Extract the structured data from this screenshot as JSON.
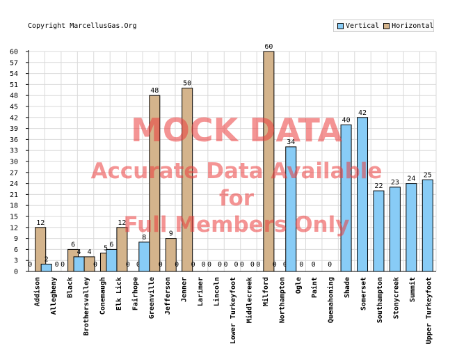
{
  "copyright": "Copyright MarcellusGas.Org",
  "watermark": {
    "line1": "MOCK DATA",
    "line2": "Accurate Data Available",
    "line3": "for",
    "line4": "Full Members Only"
  },
  "colors": {
    "vertical": "#88ccf6",
    "horizontal": "#d4b48c",
    "grid": "#d9d9d9",
    "watermark": "#eb3c3c"
  },
  "chart_data": {
    "type": "bar",
    "title": "",
    "xlabel": "",
    "ylabel": "",
    "ylim": [
      0,
      60
    ],
    "yticks": [
      0,
      3,
      6,
      9,
      12,
      15,
      18,
      21,
      24,
      27,
      30,
      33,
      36,
      39,
      42,
      45,
      48,
      51,
      54,
      57,
      60
    ],
    "grid": true,
    "legend_position": "top-right",
    "categories": [
      "Addison",
      "Allegheny",
      "Black",
      "Brothersvalley",
      "Conemaugh",
      "Elk Lick",
      "Fairhope",
      "Greenville",
      "Jefferson",
      "Jenner",
      "Larimer",
      "Lincoln",
      "Lower Turkeyfoot",
      "Middlecreek",
      "Milford",
      "Northampton",
      "Ogle",
      "Paint",
      "Quemahoning",
      "Shade",
      "Somerset",
      "Southampton",
      "Stonycreek",
      "Summit",
      "Upper Turkeyfoot"
    ],
    "series": [
      {
        "name": "Vertical",
        "values": [
          0,
          2,
          0,
          4,
          0,
          6,
          0,
          8,
          0,
          0,
          0,
          0,
          0,
          0,
          0,
          0,
          34,
          0,
          0,
          40,
          42,
          22,
          23,
          24,
          25
        ]
      },
      {
        "name": "Horizontal",
        "values": [
          12,
          0,
          6,
          4,
          5,
          12,
          0,
          48,
          9,
          50,
          0,
          0,
          0,
          0,
          60,
          0,
          0,
          null,
          null,
          null,
          null,
          null,
          null,
          null,
          null
        ]
      }
    ]
  }
}
